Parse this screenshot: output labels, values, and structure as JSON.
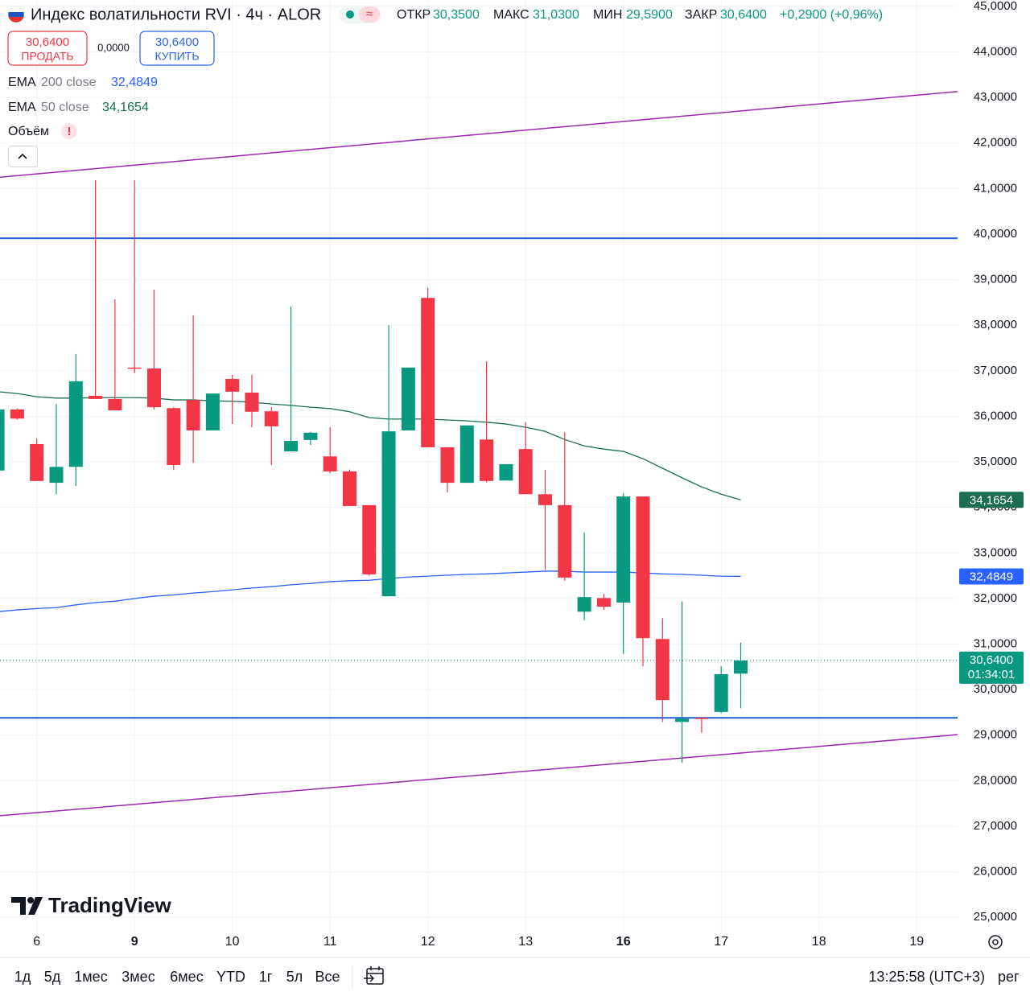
{
  "header": {
    "title": "Индекс волатильности RVI · 4ч · ALOR",
    "ohlc": [
      {
        "label": "ОТКР",
        "value": "30,3500"
      },
      {
        "label": "МАКС",
        "value": "31,0300"
      },
      {
        "label": "МИН",
        "value": "29,5900"
      },
      {
        "label": "ЗАКР",
        "value": "30,6400"
      }
    ],
    "change": "+0,2900 (+0,96%)"
  },
  "trade": {
    "sell_price": "30,6400",
    "sell_label": "ПРОДАТЬ",
    "spread": "0,0000",
    "buy_price": "30,6400",
    "buy_label": "КУПИТЬ"
  },
  "indicators": [
    {
      "name": "EMA",
      "params": "200 close",
      "value": "32,4849",
      "color": "#2962ff"
    },
    {
      "name": "EMA",
      "params": "50 close",
      "value": "34,1654",
      "color": "#1b6e52"
    },
    {
      "name": "Объём",
      "flag": "!"
    }
  ],
  "logo": "TradingView",
  "chart_data": {
    "type": "candlestick",
    "x": [
      0,
      1,
      2,
      3,
      4,
      5,
      6,
      7,
      8,
      9,
      10,
      11,
      12,
      13,
      14,
      15,
      16,
      17,
      18,
      19,
      20,
      21,
      22,
      23,
      24,
      25,
      26,
      27,
      28,
      29,
      30,
      31,
      32,
      33,
      34,
      35,
      36,
      37,
      38
    ],
    "open": [
      34.81,
      36.15,
      35.39,
      34.54,
      34.89,
      36.45,
      36.38,
      37.07,
      37.05,
      36.18,
      36.36,
      35.69,
      36.82,
      36.52,
      36.11,
      35.23,
      35.48,
      35.12,
      34.79,
      34.05,
      32.05,
      35.69,
      38.6,
      35.32,
      34.54,
      35.49,
      34.59,
      35.28,
      34.29,
      34.05,
      31.71,
      32.01,
      31.91,
      34.24,
      31.11,
      29.29,
      29.38,
      29.51,
      30.35
    ],
    "high": [
      36.15,
      36.17,
      35.51,
      36.27,
      37.37,
      41.18,
      38.57,
      41.18,
      38.78,
      36.2,
      38.22,
      36.5,
      36.91,
      36.91,
      36.2,
      38.41,
      35.66,
      35.76,
      34.83,
      34.05,
      38.0,
      37.07,
      38.82,
      35.32,
      35.8,
      37.21,
      34.95,
      35.87,
      34.82,
      35.65,
      33.45,
      32.1,
      34.31,
      34.24,
      31.57,
      31.94,
      29.4,
      30.51,
      31.03
    ],
    "low": [
      34.81,
      35.93,
      34.58,
      34.29,
      34.47,
      36.38,
      36.13,
      36.95,
      36.15,
      34.82,
      34.98,
      35.69,
      35.83,
      35.76,
      34.93,
      35.23,
      35.37,
      34.75,
      34.03,
      32.5,
      32.05,
      35.69,
      35.32,
      34.33,
      34.54,
      34.55,
      34.59,
      34.29,
      32.63,
      32.39,
      31.52,
      31.75,
      30.78,
      30.51,
      29.29,
      28.39,
      29.05,
      29.48,
      29.59
    ],
    "close": [
      36.15,
      35.95,
      34.58,
      34.89,
      36.77,
      36.38,
      36.13,
      37.05,
      36.2,
      34.93,
      35.69,
      36.5,
      36.54,
      36.1,
      35.78,
      35.46,
      35.64,
      34.79,
      34.03,
      32.53,
      35.67,
      37.07,
      35.32,
      34.54,
      35.8,
      34.58,
      34.95,
      34.29,
      34.05,
      32.46,
      32.03,
      31.82,
      34.24,
      31.13,
      29.77,
      29.36,
      29.36,
      30.34,
      30.64
    ],
    "up_color": "#089981",
    "down_color": "#f23645",
    "lines": [
      {
        "color": "#1b6e52",
        "price_label": "34,1654",
        "values": [
          36.54,
          36.5,
          36.43,
          36.4,
          36.4,
          36.41,
          36.41,
          36.41,
          36.4,
          36.36,
          36.36,
          36.34,
          36.33,
          36.31,
          36.27,
          36.24,
          36.2,
          36.17,
          36.1,
          35.97,
          35.94,
          35.94,
          35.94,
          35.92,
          35.9,
          35.87,
          35.83,
          35.76,
          35.67,
          35.49,
          35.35,
          35.28,
          35.23,
          35.07,
          34.86,
          34.65,
          34.45,
          34.29,
          34.1654
        ]
      },
      {
        "color": "#2962ff",
        "price_label": "32,4849",
        "values": [
          31.71,
          31.75,
          31.78,
          31.8,
          31.86,
          31.91,
          31.94,
          32.0,
          32.05,
          32.08,
          32.12,
          32.15,
          32.19,
          32.23,
          32.26,
          32.3,
          32.33,
          32.37,
          32.39,
          32.4,
          32.44,
          32.47,
          32.49,
          32.51,
          32.53,
          32.54,
          32.56,
          32.58,
          32.6,
          32.6,
          32.58,
          32.58,
          32.58,
          32.56,
          32.54,
          32.53,
          32.51,
          32.49,
          32.4849
        ]
      }
    ],
    "hlines": [
      {
        "value": 39.91,
        "color": "#1e5fd6"
      },
      {
        "value": 29.38,
        "color": "#1e5fd6"
      }
    ],
    "trendlines": [
      {
        "x": [
          0.12,
          49.09
        ],
        "y": [
          41.25,
          43.13
        ],
        "color": "#9c27b0"
      },
      {
        "x": [
          0.12,
          49.09
        ],
        "y": [
          27.23,
          29.01
        ],
        "color": "#9c27b0"
      }
    ],
    "last_price": {
      "value": 30.64,
      "label": "30,6400",
      "countdown": "01:34:01",
      "color": "#089981"
    },
    "xlim": [
      0.12,
      49.09
    ],
    "ylim": [
      24.65,
      45.14
    ],
    "grid": true,
    "xticks": [
      {
        "value": 2,
        "label": "6"
      },
      {
        "value": 7,
        "label": "9",
        "bold": true
      },
      {
        "value": 12,
        "label": "10"
      },
      {
        "value": 17,
        "label": "11"
      },
      {
        "value": 22,
        "label": "12"
      },
      {
        "value": 27,
        "label": "13"
      },
      {
        "value": 32,
        "label": "16",
        "bold": true
      },
      {
        "value": 37,
        "label": "17"
      },
      {
        "value": 42,
        "label": "18"
      },
      {
        "value": 47,
        "label": "19"
      }
    ],
    "yticks": [
      {
        "value": 25,
        "label": "25,0000"
      },
      {
        "value": 26,
        "label": "26,0000"
      },
      {
        "value": 27,
        "label": "27,0000"
      },
      {
        "value": 28,
        "label": "28,0000"
      },
      {
        "value": 29,
        "label": "29,0000"
      },
      {
        "value": 30,
        "label": "30,0000"
      },
      {
        "value": 31,
        "label": "31,0000"
      },
      {
        "value": 32,
        "label": "32,0000"
      },
      {
        "value": 33,
        "label": "33,0000"
      },
      {
        "value": 34,
        "label": "34,0000"
      },
      {
        "value": 35,
        "label": "35,0000"
      },
      {
        "value": 36,
        "label": "36,0000"
      },
      {
        "value": 37,
        "label": "37,0000"
      },
      {
        "value": 38,
        "label": "38,0000"
      },
      {
        "value": 39,
        "label": "39,0000"
      },
      {
        "value": 40,
        "label": "40,0000"
      },
      {
        "value": 41,
        "label": "41,0000"
      },
      {
        "value": 42,
        "label": "42,0000"
      },
      {
        "value": 43,
        "label": "43,0000"
      },
      {
        "value": 44,
        "label": "44,0000"
      },
      {
        "value": 45,
        "label": "45,0000"
      }
    ]
  },
  "footer": {
    "ranges": [
      "1д",
      "5д",
      "1мес",
      "3мес",
      "6мес",
      "YTD",
      "1г",
      "5л",
      "Все"
    ],
    "time": "13:25:58 (UTC+3)",
    "mode": "рег"
  }
}
